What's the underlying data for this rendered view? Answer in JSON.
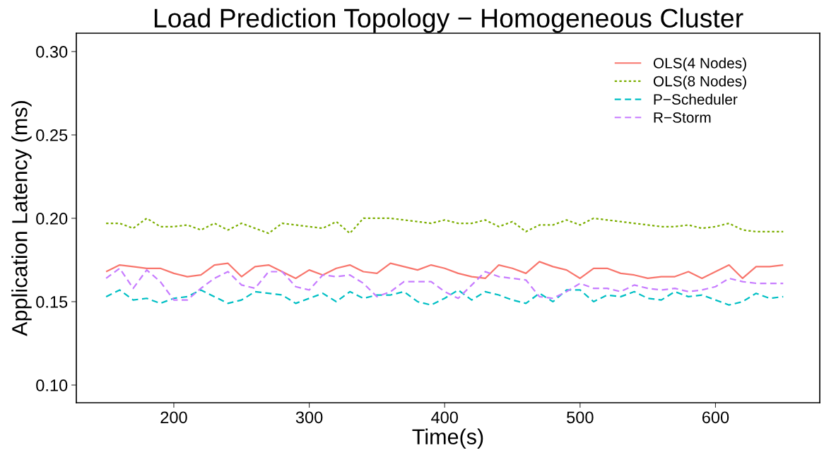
{
  "chart_data": {
    "type": "line",
    "title": "Load Prediction Topology − Homogeneous Cluster",
    "xlabel": "Time(s)",
    "ylabel": "Application Latency (ms)",
    "x": [
      150,
      160,
      170,
      180,
      190,
      200,
      210,
      220,
      230,
      240,
      250,
      260,
      270,
      280,
      290,
      300,
      310,
      320,
      330,
      340,
      350,
      360,
      370,
      380,
      390,
      400,
      410,
      420,
      430,
      440,
      450,
      460,
      470,
      480,
      490,
      500,
      510,
      520,
      530,
      540,
      550,
      560,
      570,
      580,
      590,
      600,
      610,
      620,
      630,
      640,
      650
    ],
    "xlim": [
      128,
      677
    ],
    "xticks": [
      200,
      300,
      400,
      500,
      600
    ],
    "ylim": [
      0.0894,
      0.311
    ],
    "yticks": [
      {
        "value": 0.1,
        "label": "0.10"
      },
      {
        "value": 0.15,
        "label": "0.15"
      },
      {
        "value": 0.2,
        "label": "0.20"
      },
      {
        "value": 0.25,
        "label": "0.25"
      },
      {
        "value": 0.3,
        "label": "0.30"
      }
    ],
    "grid": false,
    "legend": "top right",
    "series": [
      {
        "name": "OLS(4 Nodes)",
        "color": "#f8766d",
        "line_style": "solid",
        "values": [
          0.168,
          0.172,
          0.171,
          0.17,
          0.17,
          0.167,
          0.165,
          0.166,
          0.172,
          0.173,
          0.165,
          0.171,
          0.172,
          0.168,
          0.164,
          0.169,
          0.166,
          0.17,
          0.172,
          0.168,
          0.167,
          0.173,
          0.171,
          0.169,
          0.172,
          0.17,
          0.167,
          0.165,
          0.164,
          0.172,
          0.17,
          0.167,
          0.174,
          0.171,
          0.169,
          0.164,
          0.17,
          0.17,
          0.167,
          0.166,
          0.164,
          0.165,
          0.165,
          0.168,
          0.164,
          0.168,
          0.172,
          0.164,
          0.171,
          0.171,
          0.172
        ]
      },
      {
        "name": "OLS(8 Nodes)",
        "color": "#7cae00",
        "line_style": "dotted",
        "values": [
          0.197,
          0.197,
          0.194,
          0.2,
          0.195,
          0.195,
          0.196,
          0.193,
          0.197,
          0.193,
          0.197,
          0.194,
          0.191,
          0.197,
          0.196,
          0.195,
          0.194,
          0.198,
          0.191,
          0.2,
          0.2,
          0.2,
          0.199,
          0.198,
          0.197,
          0.199,
          0.197,
          0.197,
          0.199,
          0.195,
          0.198,
          0.192,
          0.196,
          0.196,
          0.199,
          0.196,
          0.2,
          0.199,
          0.198,
          0.197,
          0.196,
          0.195,
          0.195,
          0.196,
          0.194,
          0.195,
          0.197,
          0.193,
          0.192,
          0.192,
          0.192
        ]
      },
      {
        "name": "P−Scheduler",
        "color": "#00bfc4",
        "line_style": "dashed",
        "values": [
          0.153,
          0.157,
          0.151,
          0.152,
          0.149,
          0.152,
          0.153,
          0.157,
          0.153,
          0.149,
          0.151,
          0.156,
          0.155,
          0.154,
          0.149,
          0.152,
          0.155,
          0.15,
          0.156,
          0.152,
          0.154,
          0.154,
          0.156,
          0.15,
          0.148,
          0.152,
          0.157,
          0.151,
          0.156,
          0.154,
          0.151,
          0.149,
          0.155,
          0.15,
          0.157,
          0.157,
          0.15,
          0.154,
          0.153,
          0.156,
          0.152,
          0.151,
          0.156,
          0.153,
          0.154,
          0.151,
          0.148,
          0.15,
          0.155,
          0.152,
          0.153
        ]
      },
      {
        "name": "R−Storm",
        "color": "#c77cff",
        "line_style": "dashed",
        "values": [
          0.164,
          0.17,
          0.158,
          0.169,
          0.162,
          0.151,
          0.151,
          0.158,
          0.164,
          0.168,
          0.16,
          0.158,
          0.168,
          0.168,
          0.159,
          0.157,
          0.166,
          0.165,
          0.166,
          0.161,
          0.153,
          0.156,
          0.162,
          0.162,
          0.162,
          0.156,
          0.152,
          0.16,
          0.168,
          0.165,
          0.164,
          0.163,
          0.153,
          0.152,
          0.156,
          0.161,
          0.158,
          0.158,
          0.156,
          0.16,
          0.158,
          0.157,
          0.158,
          0.156,
          0.157,
          0.159,
          0.164,
          0.162,
          0.161,
          0.161,
          0.161
        ]
      }
    ]
  }
}
